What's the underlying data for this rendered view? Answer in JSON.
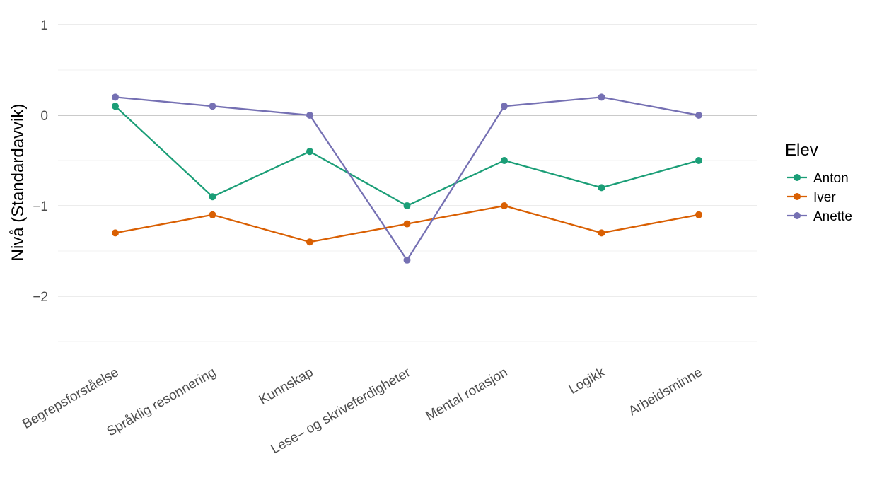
{
  "chart_data": {
    "type": "line",
    "title": "",
    "xlabel": "",
    "ylabel": "Nivå (Standardavvik)",
    "categories": [
      "Begrepsforståelse",
      "Språklig resonnering",
      "Kunnskap",
      "Lese– og skriveferdigheter",
      "Mental rotasjon",
      "Logikk",
      "Arbeidsminne"
    ],
    "ylim": [
      -2.5,
      1
    ],
    "yticks": [
      1,
      0,
      -1,
      -2
    ],
    "ytick_labels": [
      "1",
      "0",
      "−1",
      "−2"
    ],
    "reference_line": 0,
    "grid": true,
    "legend": {
      "title": "Elev",
      "position": "right"
    },
    "series": [
      {
        "name": "Anton",
        "color": "#1b9e77",
        "values": [
          0.1,
          -0.9,
          -0.4,
          -1.0,
          -0.5,
          -0.8,
          -0.5
        ]
      },
      {
        "name": "Iver",
        "color": "#d95f02",
        "values": [
          -1.3,
          -1.1,
          -1.4,
          -1.2,
          -1.0,
          -1.3,
          -1.1
        ]
      },
      {
        "name": "Anette",
        "color": "#7570b3",
        "values": [
          0.2,
          0.1,
          0.0,
          -1.6,
          0.1,
          0.2,
          0.0
        ]
      }
    ]
  }
}
